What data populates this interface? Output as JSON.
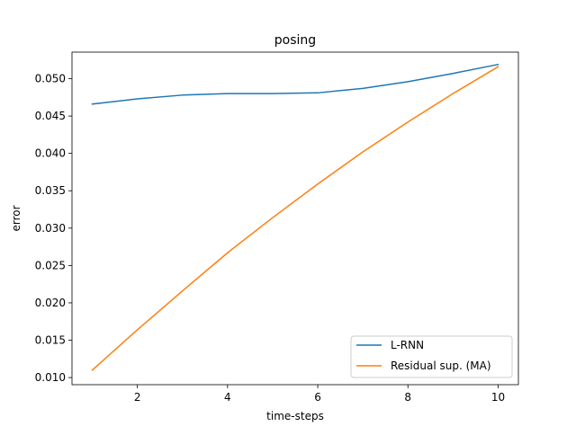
{
  "chart_data": {
    "type": "line",
    "title": "posing",
    "xlabel": "time-steps",
    "ylabel": "error",
    "xlim": [
      0.55,
      10.45
    ],
    "ylim": [
      0.00905,
      0.05355
    ],
    "xticks": [
      2,
      4,
      6,
      8,
      10
    ],
    "xtick_labels": [
      "2",
      "4",
      "6",
      "8",
      "10"
    ],
    "yticks": [
      0.01,
      0.015,
      0.02,
      0.025,
      0.03,
      0.035,
      0.04,
      0.045,
      0.05
    ],
    "ytick_labels": [
      "0.010",
      "0.015",
      "0.020",
      "0.025",
      "0.030",
      "0.035",
      "0.040",
      "0.045",
      "0.050"
    ],
    "grid": false,
    "legend_position": "lower-right",
    "x": [
      1,
      2,
      3,
      4,
      5,
      6,
      7,
      8,
      9,
      10
    ],
    "series": [
      {
        "name": "L-RNN",
        "color": "#1f77b4",
        "values": [
          0.0466,
          0.0473,
          0.0478,
          0.048,
          0.048,
          0.0481,
          0.0487,
          0.0496,
          0.0507,
          0.0519
        ]
      },
      {
        "name": "Residual sup. (MA)",
        "color": "#ff7f0e",
        "values": [
          0.011,
          0.0164,
          0.0216,
          0.0267,
          0.0314,
          0.0359,
          0.0402,
          0.0442,
          0.048,
          0.0516
        ]
      }
    ]
  }
}
